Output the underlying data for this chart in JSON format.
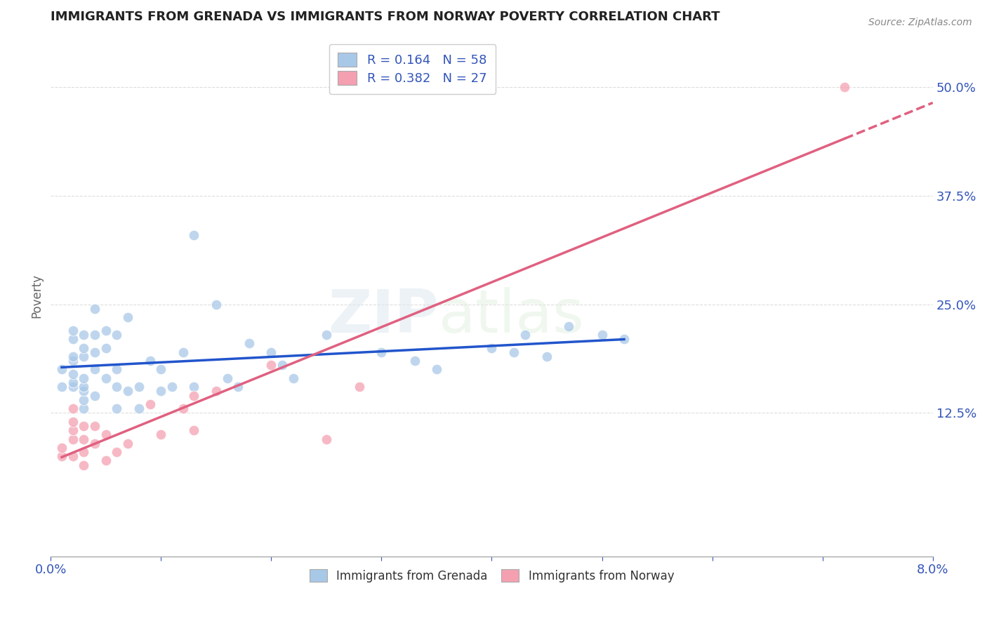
{
  "title": "IMMIGRANTS FROM GRENADA VS IMMIGRANTS FROM NORWAY POVERTY CORRELATION CHART",
  "source": "Source: ZipAtlas.com",
  "xlabel": "",
  "ylabel": "Poverty",
  "xlim": [
    0.0,
    0.08
  ],
  "ylim": [
    -0.04,
    0.56
  ],
  "xticks": [
    0.0,
    0.01,
    0.02,
    0.03,
    0.04,
    0.05,
    0.06,
    0.07,
    0.08
  ],
  "yticks_right": [
    0.125,
    0.25,
    0.375,
    0.5
  ],
  "yticklabels_right": [
    "12.5%",
    "25.0%",
    "37.5%",
    "50.0%"
  ],
  "grenada_color": "#a8c8e8",
  "norway_color": "#f4a0b0",
  "grenada_line_color": "#2255cc",
  "norway_line_color": "#e06080",
  "legend_label1": "R = 0.164   N = 58",
  "legend_label2": "R = 0.382   N = 27",
  "legend_label_bottom1": "Immigrants from Grenada",
  "legend_label_bottom2": "Immigrants from Norway",
  "watermark": "ZIPatlas",
  "background_color": "#ffffff",
  "grid_color": "#dddddd",
  "title_color": "#222222",
  "axis_label_color": "#3355bb",
  "grenada_x": [
    0.001,
    0.001,
    0.002,
    0.002,
    0.002,
    0.002,
    0.002,
    0.002,
    0.002,
    0.003,
    0.003,
    0.003,
    0.003,
    0.003,
    0.003,
    0.003,
    0.003,
    0.004,
    0.004,
    0.004,
    0.004,
    0.004,
    0.005,
    0.005,
    0.005,
    0.006,
    0.006,
    0.006,
    0.006,
    0.007,
    0.007,
    0.008,
    0.008,
    0.009,
    0.01,
    0.01,
    0.011,
    0.012,
    0.013,
    0.013,
    0.015,
    0.016,
    0.017,
    0.018,
    0.02,
    0.021,
    0.022,
    0.025,
    0.03,
    0.033,
    0.035,
    0.04,
    0.042,
    0.043,
    0.045,
    0.047,
    0.05,
    0.052
  ],
  "grenada_y": [
    0.155,
    0.175,
    0.155,
    0.16,
    0.17,
    0.185,
    0.19,
    0.21,
    0.22,
    0.13,
    0.14,
    0.15,
    0.155,
    0.165,
    0.19,
    0.2,
    0.215,
    0.145,
    0.175,
    0.195,
    0.215,
    0.245,
    0.165,
    0.2,
    0.22,
    0.13,
    0.155,
    0.175,
    0.215,
    0.15,
    0.235,
    0.13,
    0.155,
    0.185,
    0.15,
    0.175,
    0.155,
    0.195,
    0.155,
    0.33,
    0.25,
    0.165,
    0.155,
    0.205,
    0.195,
    0.18,
    0.165,
    0.215,
    0.195,
    0.185,
    0.175,
    0.2,
    0.195,
    0.215,
    0.19,
    0.225,
    0.215,
    0.21
  ],
  "norway_x": [
    0.001,
    0.001,
    0.002,
    0.002,
    0.002,
    0.002,
    0.002,
    0.003,
    0.003,
    0.003,
    0.003,
    0.004,
    0.004,
    0.005,
    0.005,
    0.006,
    0.007,
    0.009,
    0.01,
    0.012,
    0.013,
    0.013,
    0.015,
    0.02,
    0.025,
    0.028,
    0.072
  ],
  "norway_y": [
    0.075,
    0.085,
    0.095,
    0.105,
    0.115,
    0.13,
    0.075,
    0.065,
    0.08,
    0.095,
    0.11,
    0.09,
    0.11,
    0.1,
    0.07,
    0.08,
    0.09,
    0.135,
    0.1,
    0.13,
    0.105,
    0.145,
    0.15,
    0.18,
    0.095,
    0.155,
    0.5
  ]
}
